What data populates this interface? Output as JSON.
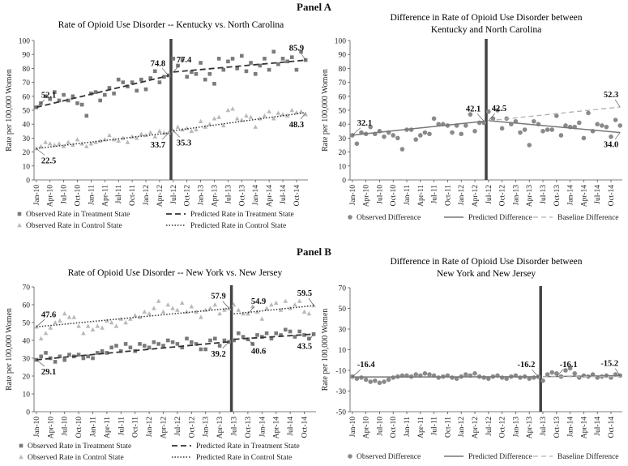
{
  "panels": [
    {
      "title": "Panel A"
    },
    {
      "title": "Panel B"
    }
  ],
  "colors": {
    "treatment": "#7a7a7a",
    "control": "#b9b9b9",
    "line": "#333333",
    "baseline": "#b0b0b0",
    "divider": "#444444"
  },
  "chart_data": [
    {
      "id": "A-left",
      "type": "line",
      "title": "Rate of Opioid Use Disorder -- Kentucky vs. North Carolina",
      "ylabel": "Rate per 100,000 Women",
      "xlabel": "",
      "ylim": [
        0,
        100
      ],
      "yticks": [
        0,
        10,
        20,
        30,
        40,
        50,
        60,
        70,
        80,
        90,
        100
      ],
      "x_tick_labels": [
        "Jan-10",
        "Apr-10",
        "Jul-10",
        "Oct-10",
        "Jan-11",
        "Apr-11",
        "Jul-11",
        "Oct-11",
        "Jan-12",
        "Apr-12",
        "Jul-12",
        "Oct-12",
        "Jan-13",
        "Apr-13",
        "Jul-13",
        "Oct-13",
        "Jan-14",
        "Apr-14",
        "Jul-14",
        "Oct-14"
      ],
      "months": 60,
      "break_month": 30,
      "series": [
        {
          "name": "Observed Rate in Treatment State",
          "kind": "marker",
          "marker": "square",
          "color": "#7a7a7a",
          "pre": [
            52.1,
            55,
            60,
            58,
            63,
            57,
            61,
            57,
            60,
            55,
            54,
            46,
            62,
            63,
            57,
            61,
            66,
            62,
            72,
            70,
            67,
            70,
            64,
            72,
            65,
            73,
            78,
            70,
            74,
            75
          ],
          "post": [
            87,
            82,
            86,
            74,
            77.4,
            76,
            84,
            72,
            76,
            69,
            87,
            79,
            85,
            87,
            80,
            89,
            78,
            84,
            76,
            82,
            87,
            79,
            92,
            83,
            87,
            85,
            88,
            79,
            92,
            86
          ]
        },
        {
          "name": "Observed Rate in Control State",
          "kind": "marker",
          "marker": "triangle",
          "color": "#b9b9b9",
          "pre": [
            22.5,
            24,
            27,
            26,
            25,
            26,
            24,
            27,
            25,
            29,
            26,
            24,
            26,
            27,
            28,
            29,
            32,
            29,
            28,
            30,
            27,
            31,
            30,
            33,
            32,
            34,
            31,
            35,
            33.7,
            34
          ],
          "post": [
            35.3,
            38,
            36,
            37,
            35,
            36,
            42,
            38,
            40,
            44,
            45,
            39,
            50,
            51,
            44,
            43,
            46,
            45,
            38,
            44,
            46,
            49,
            44,
            48,
            47,
            46,
            50,
            48.3,
            49,
            47
          ]
        },
        {
          "name": "Predicted Rate in Treatment State",
          "kind": "line",
          "dash": "7,4",
          "width": 1.8,
          "color": "#333333",
          "pre_range": [
            52.1,
            74.8
          ],
          "post_range": [
            77.4,
            85.9
          ]
        },
        {
          "name": "Predicted Rate in Control State",
          "kind": "line",
          "dash": "1.5,2",
          "width": 1.5,
          "color": "#333333",
          "pre_range": [
            22.5,
            33.7
          ],
          "post_range": [
            35.3,
            48.3
          ]
        }
      ],
      "annotations": [
        {
          "text": "52.1",
          "m": 0,
          "v": 52.1
        },
        {
          "text": "22.5",
          "m": 0,
          "v": 22.5
        },
        {
          "text": "74.8",
          "m": 29,
          "v": 74.8
        },
        {
          "text": "33.7",
          "m": 29,
          "v": 33.7
        },
        {
          "text": "77.4",
          "m": 30,
          "v": 77.4
        },
        {
          "text": "35.3",
          "m": 30,
          "v": 35.3
        },
        {
          "text": "85.9",
          "m": 59,
          "v": 85.9
        },
        {
          "text": "48.3",
          "m": 59,
          "v": 48.3
        }
      ],
      "legend": [
        "Observed Rate in Treatment State",
        "Predicted Rate in Treatment State",
        "Observed Rate in Control State",
        "Predicted Rate in Control State"
      ]
    },
    {
      "id": "A-right",
      "type": "line",
      "title": "Difference in Rate of Opioid Use Disorder between",
      "title2": "Kentucky and North Carolina",
      "ylabel": "Rate per 100,000 Women",
      "xlabel": "",
      "ylim": [
        0,
        100
      ],
      "yticks": [
        0,
        10,
        20,
        30,
        40,
        50,
        60,
        70,
        80,
        90,
        100
      ],
      "x_tick_labels": [
        "Jan-10",
        "Apr-10",
        "Jul-10",
        "Oct-10",
        "Jan-11",
        "Apr-11",
        "Jul-11",
        "Oct-11",
        "Jan-12",
        "Apr-12",
        "Jul-12",
        "Oct-12",
        "Jan-13",
        "Apr-13",
        "Jul-13",
        "Oct-13",
        "Jan-14",
        "Apr-14",
        "Jul-14",
        "Oct-14"
      ],
      "months": 60,
      "break_month": 30,
      "series": [
        {
          "name": "Observed Difference",
          "kind": "marker",
          "marker": "circle",
          "color": "#8a8a8a",
          "pre": [
            32,
            26,
            34,
            33,
            38,
            33,
            35,
            31,
            34,
            32,
            30,
            22,
            36,
            36,
            29,
            32,
            34,
            33,
            44,
            40,
            40,
            39,
            34,
            39,
            33,
            39,
            47,
            35,
            41,
            41
          ],
          "post": [
            49,
            44,
            50,
            37,
            44,
            40,
            42,
            34,
            36,
            25,
            42,
            40,
            35,
            36,
            36,
            46,
            32,
            39,
            38,
            38,
            41,
            30,
            48,
            35,
            40,
            39,
            38,
            31,
            43,
            39
          ]
        },
        {
          "name": "Predicted Difference",
          "kind": "line",
          "dash": "",
          "width": 1.5,
          "color": "#777777",
          "pre_range": [
            32.1,
            42.1
          ],
          "post_range": [
            42.5,
            34.0
          ]
        },
        {
          "name": "Baseline Difference",
          "kind": "line",
          "dash": "6,4",
          "width": 1.3,
          "color": "#b0b0b0",
          "pre_range": null,
          "post_range": [
            42.5,
            52.3
          ]
        }
      ],
      "annotations": [
        {
          "text": "32.1",
          "m": 0,
          "v": 32.1
        },
        {
          "text": "42.1",
          "m": 29,
          "v": 42.1
        },
        {
          "text": "42.5",
          "m": 30,
          "v": 42.5
        },
        {
          "text": "52.3",
          "m": 59,
          "v": 52.3
        },
        {
          "text": "34.0",
          "m": 59,
          "v": 34.0
        }
      ],
      "legend": [
        "Observed Difference",
        "Predicted Difference",
        "Baseline Difference"
      ]
    },
    {
      "id": "B-left",
      "type": "line",
      "title": "Rate of Opioid Use Disorder -- New York vs. New Jersey",
      "ylabel": "Rate per 100,000 Women",
      "xlabel": "",
      "ylim": [
        0,
        70
      ],
      "yticks": [
        0,
        10,
        20,
        30,
        40,
        50,
        60,
        70
      ],
      "x_tick_labels": [
        "Jan-10",
        "Apr-10",
        "Jul-10",
        "Oct-10",
        "Jan-11",
        "Apr-11",
        "Jul-11",
        "Oct-11",
        "Jan-12",
        "Apr-12",
        "Jul-12",
        "Oct-12",
        "Jan-13",
        "Apr-13",
        "Jul-13",
        "Oct-13",
        "Jan-14",
        "Apr-14",
        "Jul-14",
        "Oct-14"
      ],
      "months": 60,
      "break_month": 42,
      "series": [
        {
          "name": "Observed Rate in Treatment State",
          "kind": "marker",
          "marker": "square",
          "color": "#7a7a7a",
          "pre": [
            29.1,
            31,
            33,
            30,
            28,
            31,
            29,
            32,
            31,
            32,
            30,
            31,
            30,
            33,
            34,
            33,
            36,
            37,
            34,
            38,
            36,
            34,
            38,
            37,
            36,
            39,
            38,
            37,
            40,
            39,
            38,
            36,
            41,
            39,
            38,
            35,
            35,
            40,
            41,
            37,
            40,
            39.2
          ],
          "post": [
            40,
            44,
            42,
            40.6,
            38,
            43,
            42,
            44,
            41,
            44,
            43,
            46,
            45,
            42,
            45,
            43,
            41,
            43.5
          ]
        },
        {
          "name": "Observed Rate in Control State",
          "kind": "marker",
          "marker": "triangle",
          "color": "#b9b9b9",
          "pre": [
            47.6,
            41,
            44,
            47,
            50,
            51,
            55,
            53,
            53,
            48,
            44,
            48,
            46,
            48,
            47,
            51,
            50,
            48,
            52,
            50,
            52,
            54,
            53,
            56,
            55,
            58,
            62,
            56,
            60,
            58,
            57,
            61,
            56,
            59,
            56,
            53,
            57,
            58,
            60,
            55,
            57,
            57.9
          ],
          "post": [
            60,
            57,
            55,
            54.9,
            59,
            56,
            52,
            58,
            60,
            61,
            57,
            62,
            58,
            60,
            62,
            56,
            55,
            59.5
          ]
        },
        {
          "name": "Predicted Rate in Treatment State",
          "kind": "line",
          "dash": "7,4",
          "width": 1.8,
          "color": "#333333",
          "pre_range": [
            29.1,
            39.2
          ],
          "post_range": [
            40.6,
            43.5
          ]
        },
        {
          "name": "Predicted Rate in Control State",
          "kind": "line",
          "dash": "1.5,2",
          "width": 1.5,
          "color": "#333333",
          "pre_range": [
            47.6,
            57.9
          ],
          "post_range": [
            54.9,
            59.5
          ]
        }
      ],
      "annotations": [
        {
          "text": "47.6",
          "m": 0,
          "v": 47.6
        },
        {
          "text": "29.1",
          "m": 0,
          "v": 29.1
        },
        {
          "text": "57.9",
          "m": 41,
          "v": 57.9
        },
        {
          "text": "39.2",
          "m": 41,
          "v": 39.2
        },
        {
          "text": "54.9",
          "m": 45,
          "v": 54.9
        },
        {
          "text": "40.6",
          "m": 45,
          "v": 40.6
        },
        {
          "text": "59.5",
          "m": 59,
          "v": 59.5
        },
        {
          "text": "43.5",
          "m": 59,
          "v": 43.5
        }
      ],
      "legend": [
        "Observed Rate in Treatment State",
        "Predicted Rate in Treatment State",
        "Observed Rate in Control State",
        "Predicted Rate in Control State"
      ]
    },
    {
      "id": "B-right",
      "type": "line",
      "title": "Difference in Rate of Opioid Use Disorder between",
      "title2": "New York and New Jersey",
      "ylabel": "Rate per 100,000 Women",
      "xlabel": "",
      "ylim": [
        -50,
        70
      ],
      "yticks": [
        -50,
        -30,
        -10,
        10,
        30,
        50,
        70
      ],
      "x_tick_labels": [
        "Jan-10",
        "Apr-10",
        "Jul-10",
        "Oct-10",
        "Jan-11",
        "Apr-11",
        "Jul-11",
        "Oct-11",
        "Jan-12",
        "Apr-12",
        "Jul-12",
        "Oct-12",
        "Jan-13",
        "Apr-13",
        "Jul-13",
        "Oct-13",
        "Jan-14",
        "Apr-14",
        "Jul-14",
        "Oct-14"
      ],
      "months": 60,
      "break_month": 42,
      "series": [
        {
          "name": "Observed Difference",
          "kind": "marker",
          "marker": "circle",
          "color": "#8a8a8a",
          "pre": [
            -16,
            -18,
            -17,
            -19,
            -21,
            -20,
            -22,
            -21,
            -19,
            -17,
            -16,
            -15,
            -15,
            -16,
            -14,
            -15,
            -13,
            -14,
            -15,
            -17,
            -16,
            -15,
            -17,
            -18,
            -16,
            -14,
            -15,
            -13,
            -16,
            -17,
            -18,
            -16,
            -15,
            -17,
            -18,
            -16,
            -15,
            -17,
            -16,
            -18,
            -17,
            -16.2
          ],
          "post": [
            -20,
            -14,
            -12,
            -13,
            -16,
            -10,
            -8,
            -13,
            -17,
            -15,
            -16,
            -14,
            -17,
            -16,
            -15,
            -17,
            -14,
            -15
          ]
        },
        {
          "name": "Predicted Difference",
          "kind": "line",
          "dash": "",
          "width": 1.5,
          "color": "#777777",
          "pre_range": [
            -16.4,
            -16.2
          ],
          "post_range": [
            -16.1,
            -15.2
          ]
        },
        {
          "name": "Baseline Difference",
          "kind": "line",
          "dash": "6,4",
          "width": 1.3,
          "color": "#b0b0b0",
          "pre_range": null,
          "post_range": [
            -16.1,
            -16.0
          ]
        }
      ],
      "annotations": [
        {
          "text": "-16.4",
          "m": 0,
          "v": -16.4
        },
        {
          "text": "-16.2",
          "m": 41,
          "v": -16.2
        },
        {
          "text": "-16.1",
          "m": 45,
          "v": -16.1
        },
        {
          "text": "-15.2",
          "m": 59,
          "v": -15.2
        }
      ],
      "legend": [
        "Observed Difference",
        "Predicted Difference",
        "Baseline Difference"
      ]
    }
  ]
}
